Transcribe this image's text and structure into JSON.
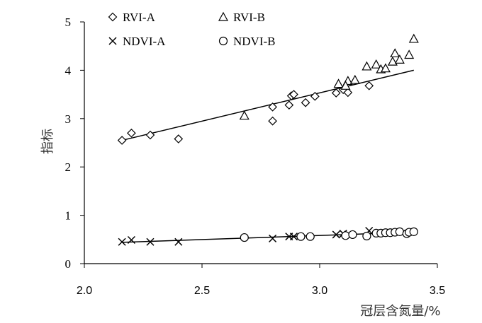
{
  "chart_data": {
    "type": "scatter",
    "xlabel": "冠层含氮量/%",
    "ylabel": "指标",
    "xlim": [
      2.0,
      3.5
    ],
    "ylim": [
      0,
      5
    ],
    "x_ticks": [
      "2.0",
      "2.5",
      "3.0",
      "3.5"
    ],
    "y_ticks": [
      "0",
      "1",
      "2",
      "3",
      "4",
      "5"
    ],
    "grid": false,
    "legend_position": "top",
    "series": [
      {
        "name": "RVI-A",
        "marker": "diamond",
        "points": [
          [
            2.16,
            2.55
          ],
          [
            2.2,
            2.7
          ],
          [
            2.28,
            2.66
          ],
          [
            2.4,
            2.58
          ],
          [
            2.8,
            2.95
          ],
          [
            2.8,
            3.24
          ],
          [
            2.87,
            3.28
          ],
          [
            2.88,
            3.47
          ],
          [
            2.89,
            3.5
          ],
          [
            2.94,
            3.33
          ],
          [
            2.98,
            3.46
          ],
          [
            3.07,
            3.53
          ],
          [
            3.1,
            3.6
          ],
          [
            3.12,
            3.54
          ],
          [
            3.21,
            3.68
          ]
        ]
      },
      {
        "name": "RVI-B",
        "marker": "triangle",
        "points": [
          [
            2.68,
            3.06
          ],
          [
            3.08,
            3.72
          ],
          [
            3.12,
            3.78
          ],
          [
            3.15,
            3.8
          ],
          [
            3.2,
            4.08
          ],
          [
            3.24,
            4.12
          ],
          [
            3.26,
            4.02
          ],
          [
            3.28,
            4.04
          ],
          [
            3.31,
            4.18
          ],
          [
            3.32,
            4.35
          ],
          [
            3.34,
            4.22
          ],
          [
            3.38,
            4.32
          ],
          [
            3.4,
            4.65
          ],
          [
            3.11,
            3.68
          ]
        ]
      },
      {
        "name": "NDVI-A",
        "marker": "x",
        "points": [
          [
            2.16,
            0.45
          ],
          [
            2.2,
            0.49
          ],
          [
            2.28,
            0.45
          ],
          [
            2.4,
            0.45
          ],
          [
            2.8,
            0.52
          ],
          [
            2.87,
            0.56
          ],
          [
            2.89,
            0.56
          ],
          [
            3.07,
            0.6
          ],
          [
            3.1,
            0.62
          ],
          [
            3.12,
            0.6
          ],
          [
            3.21,
            0.68
          ]
        ]
      },
      {
        "name": "NDVI-B",
        "marker": "circle",
        "points": [
          [
            2.68,
            0.54
          ],
          [
            2.92,
            0.56
          ],
          [
            2.96,
            0.56
          ],
          [
            3.11,
            0.58
          ],
          [
            3.14,
            0.6
          ],
          [
            3.2,
            0.57
          ],
          [
            3.24,
            0.63
          ],
          [
            3.26,
            0.63
          ],
          [
            3.28,
            0.64
          ],
          [
            3.3,
            0.64
          ],
          [
            3.32,
            0.65
          ],
          [
            3.34,
            0.66
          ],
          [
            3.37,
            0.62
          ],
          [
            3.38,
            0.65
          ],
          [
            3.4,
            0.66
          ]
        ]
      }
    ],
    "trendlines": [
      {
        "x": [
          2.16,
          3.4
        ],
        "y": [
          2.55,
          4.0
        ]
      },
      {
        "x": [
          2.16,
          3.4
        ],
        "y": [
          0.44,
          0.65
        ]
      }
    ]
  }
}
